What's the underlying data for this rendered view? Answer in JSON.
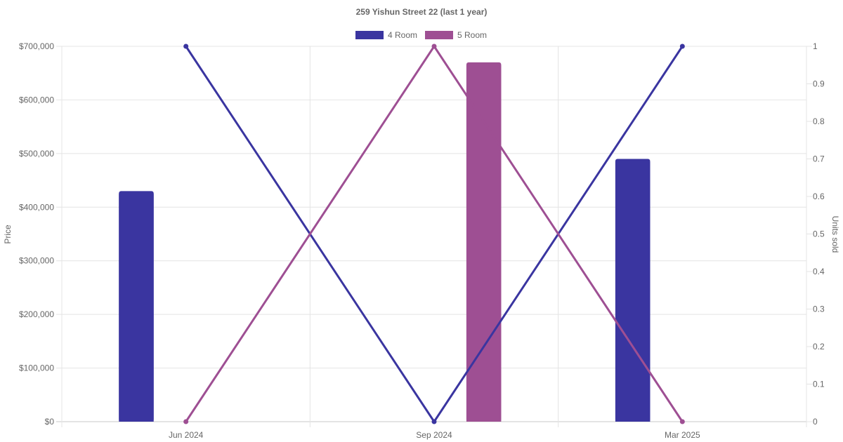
{
  "chart_data": {
    "type": "bar",
    "title": "259 Yishun Street 22 (last 1 year)",
    "categories": [
      "Jun 2024",
      "Sep 2024",
      "Mar 2025"
    ],
    "ylabel": "Price",
    "y2label": "Units sold",
    "ylim": [
      0,
      700000
    ],
    "y2lim": [
      0,
      1
    ],
    "yticks": [
      "$0",
      "$100,000",
      "$200,000",
      "$300,000",
      "$400,000",
      "$500,000",
      "$600,000",
      "$700,000"
    ],
    "y2ticks": [
      "0",
      "0.1",
      "0.2",
      "0.3",
      "0.4",
      "0.5",
      "0.6",
      "0.7",
      "0.8",
      "0.9",
      "1"
    ],
    "grid": true,
    "legend_position": "top-center",
    "series": [
      {
        "name": "4 Room",
        "color": "#3a35a0",
        "price": [
          430000,
          null,
          490000
        ],
        "units_sold": [
          1,
          0,
          1
        ]
      },
      {
        "name": "5 Room",
        "color": "#9e4f93",
        "price": [
          null,
          670000,
          null
        ],
        "units_sold": [
          0,
          1,
          0
        ]
      }
    ]
  }
}
